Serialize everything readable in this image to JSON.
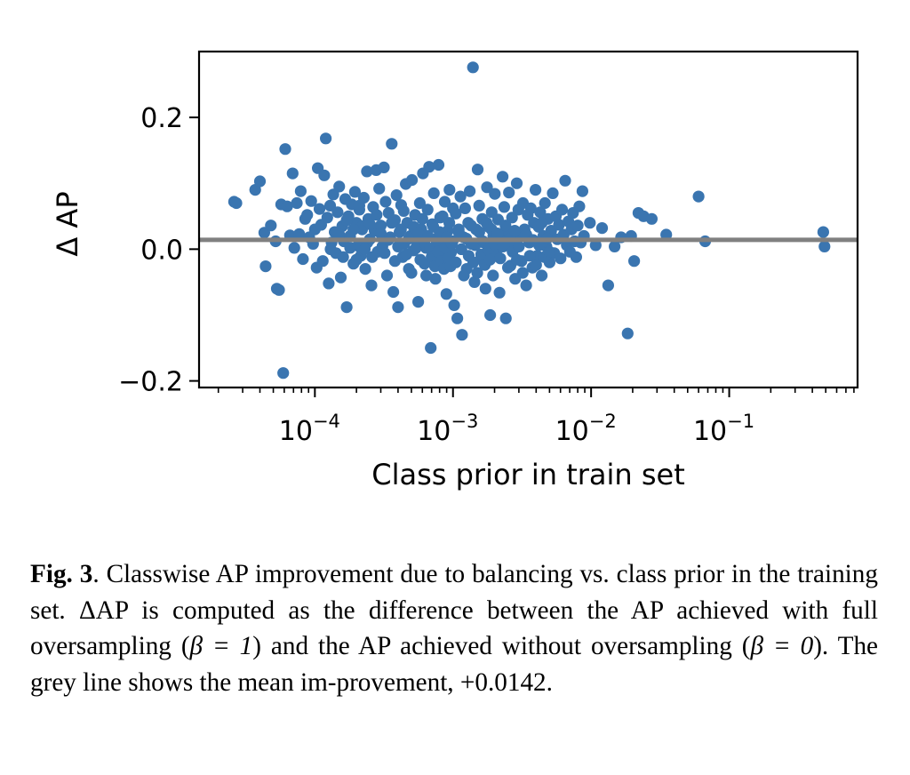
{
  "chart_data": {
    "type": "scatter",
    "title": "",
    "xlabel": "Class prior in train set",
    "ylabel": "Δ AP",
    "xscale": "log",
    "xlim": [
      1.45e-05,
      0.85
    ],
    "ylim": [
      -0.21,
      0.3
    ],
    "xticks": [
      {
        "value": 0.0001,
        "base": "10",
        "exp": "−4"
      },
      {
        "value": 0.001,
        "base": "10",
        "exp": "−3"
      },
      {
        "value": 0.01,
        "base": "10",
        "exp": "−2"
      },
      {
        "value": 0.1,
        "base": "10",
        "exp": "−1"
      }
    ],
    "yticks": [
      {
        "value": -0.2,
        "label": "−0.2"
      },
      {
        "value": 0.0,
        "label": "0.0"
      },
      {
        "value": 0.2,
        "label": "0.2"
      }
    ],
    "point_color": "#3a75b0",
    "mean_line": {
      "value": 0.0142,
      "color": "#808080"
    },
    "points": [
      [
        2.6e-05,
        0.072
      ],
      [
        2.7e-05,
        0.07
      ],
      [
        3.7e-05,
        0.09
      ],
      [
        4e-05,
        0.103
      ],
      [
        4.3e-05,
        0.025
      ],
      [
        4.4e-05,
        -0.026
      ],
      [
        4.8e-05,
        0.036
      ],
      [
        5.2e-05,
        0.012
      ],
      [
        5.3e-05,
        -0.06
      ],
      [
        5.5e-05,
        -0.062
      ],
      [
        5.7e-05,
        0.068
      ],
      [
        5.9e-05,
        -0.188
      ],
      [
        6.1e-05,
        0.152
      ],
      [
        6.3e-05,
        0.065
      ],
      [
        6.6e-05,
        0.021
      ],
      [
        6.9e-05,
        0.115
      ],
      [
        7.1e-05,
        0.002
      ],
      [
        7.4e-05,
        0.07
      ],
      [
        7.7e-05,
        0.023
      ],
      [
        7.9e-05,
        0.088
      ],
      [
        8.2e-05,
        -0.015
      ],
      [
        8.5e-05,
        0.046
      ],
      [
        8.8e-05,
        0.052
      ],
      [
        9.1e-05,
        0.018
      ],
      [
        9.4e-05,
        0.073
      ],
      [
        9.7e-05,
        0.008
      ],
      [
        0.0001,
        0.03
      ],
      [
        0.000103,
        -0.028
      ],
      [
        0.000105,
        0.123
      ],
      [
        0.000108,
        0.061
      ],
      [
        0.000111,
        0.037
      ],
      [
        0.000114,
        -0.018
      ],
      [
        0.000117,
        0.112
      ],
      [
        0.00012,
        0.168
      ],
      [
        0.000123,
        0.048
      ],
      [
        0.000126,
        -0.052
      ],
      [
        0.000129,
        0.066
      ],
      [
        0.000132,
        0.01
      ],
      [
        0.000136,
        0.083
      ],
      [
        0.000139,
        0.026
      ],
      [
        0.000142,
        -0.006
      ],
      [
        0.000146,
        0.056
      ],
      [
        0.00015,
        0.095
      ],
      [
        0.000154,
        -0.043
      ],
      [
        0.000158,
        0.035
      ],
      [
        0.000162,
        0.012
      ],
      [
        0.000166,
        0.076
      ],
      [
        0.00017,
        -0.088
      ],
      [
        0.000175,
        0.05
      ],
      [
        0.00018,
        0.02
      ],
      [
        0.000185,
        0.068
      ],
      [
        0.00019,
        -0.022
      ],
      [
        0.000195,
        0.087
      ],
      [
        0.0002,
        0.04
      ],
      [
        0.000205,
        0.005
      ],
      [
        0.00021,
        0.06
      ],
      [
        0.000215,
        -0.01
      ],
      [
        0.00022,
        0.03
      ],
      [
        0.000226,
        0.078
      ],
      [
        0.000232,
        -0.03
      ],
      [
        0.000238,
        0.118
      ],
      [
        0.000244,
        0.046
      ],
      [
        0.00025,
        0.015
      ],
      [
        0.000257,
        -0.055
      ],
      [
        0.000264,
        0.064
      ],
      [
        0.000271,
        0.028
      ],
      [
        0.000278,
        0.12
      ],
      [
        0.000285,
        -0.004
      ],
      [
        0.000292,
        0.092
      ],
      [
        0.0003,
        0.036
      ],
      [
        0.000308,
        0.004
      ],
      [
        0.000316,
        0.124
      ],
      [
        0.000325,
        0.072
      ],
      [
        0.000333,
        -0.04
      ],
      [
        0.000342,
        0.055
      ],
      [
        0.000351,
        0.018
      ],
      [
        0.00036,
        0.16
      ],
      [
        0.00037,
        -0.065
      ],
      [
        0.00038,
        0.044
      ],
      [
        0.00039,
        0.082
      ],
      [
        0.0004,
        -0.088
      ],
      [
        0.00041,
        0.026
      ],
      [
        0.000421,
        0.067
      ],
      [
        0.000432,
        -0.012
      ],
      [
        0.000443,
        0.008
      ],
      [
        0.000455,
        0.099
      ],
      [
        0.000467,
        0.04
      ],
      [
        0.000479,
        -0.03
      ],
      [
        0.000492,
        0.02
      ],
      [
        0.000505,
        0.105
      ],
      [
        0.000518,
        -0.002
      ],
      [
        0.000532,
        0.052
      ],
      [
        0.000546,
        0.012
      ],
      [
        0.00056,
        -0.08
      ],
      [
        0.000575,
        0.07
      ],
      [
        0.00059,
        0.03
      ],
      [
        0.000606,
        0.115
      ],
      [
        0.000622,
        -0.022
      ],
      [
        0.000638,
        0.002
      ],
      [
        0.000655,
        0.06
      ],
      [
        0.000672,
        0.125
      ],
      [
        0.00069,
        -0.15
      ],
      [
        0.000708,
        0.038
      ],
      [
        0.000727,
        0.085
      ],
      [
        0.000746,
        -0.045
      ],
      [
        0.000766,
        0.016
      ],
      [
        0.000786,
        0.128
      ],
      [
        0.000807,
        0.048
      ],
      [
        0.000828,
        -0.01
      ],
      [
        0.00085,
        0.006
      ],
      [
        0.000872,
        0.072
      ],
      [
        0.000895,
        -0.068
      ],
      [
        0.000919,
        0.028
      ],
      [
        0.000943,
        0.09
      ],
      [
        0.000968,
        -0.005
      ],
      [
        0.000994,
        0.012
      ],
      [
        0.00102,
        -0.085
      ],
      [
        0.001047,
        0.054
      ],
      [
        0.001075,
        -0.105
      ],
      [
        0.001103,
        0.025
      ],
      [
        0.001132,
        0.08
      ],
      [
        0.001162,
        -0.13
      ],
      [
        0.001193,
        0.018
      ],
      [
        0.001224,
        0.062
      ],
      [
        0.001256,
        -0.03
      ],
      [
        0.001289,
        0.04
      ],
      [
        0.001323,
        0.088
      ],
      [
        0.001358,
        0.008
      ],
      [
        0.001394,
        0.276
      ],
      [
        0.001431,
        -0.05
      ],
      [
        0.001469,
        0.03
      ],
      [
        0.001508,
        0.121
      ],
      [
        0.001548,
        0.066
      ],
      [
        0.001589,
        -0.015
      ],
      [
        0.001631,
        0.046
      ],
      [
        0.001674,
        0.01
      ],
      [
        0.001718,
        -0.06
      ],
      [
        0.001763,
        0.094
      ],
      [
        0.00181,
        0.034
      ],
      [
        0.001858,
        -0.1
      ],
      [
        0.001907,
        0.056
      ],
      [
        0.001957,
        0.02
      ],
      [
        0.002009,
        0.084
      ],
      [
        0.002062,
        -0.008
      ],
      [
        0.002117,
        0.045
      ],
      [
        0.002173,
        -0.066
      ],
      [
        0.00223,
        0.015
      ],
      [
        0.002289,
        0.11
      ],
      [
        0.00235,
        0.064
      ],
      [
        0.002412,
        -0.105
      ],
      [
        0.002476,
        0.028
      ],
      [
        0.002541,
        0.086
      ],
      [
        0.002608,
        -0.025
      ],
      [
        0.002677,
        0.048
      ],
      [
        0.002748,
        0.004
      ],
      [
        0.002821,
        -0.045
      ],
      [
        0.002895,
        0.1
      ],
      [
        0.002972,
        0.06
      ],
      [
        0.00305,
        0.022
      ],
      [
        0.003131,
        -0.018
      ],
      [
        0.003214,
        0.07
      ],
      [
        0.003299,
        0.03
      ],
      [
        0.003386,
        -0.055
      ],
      [
        0.003475,
        0.052
      ],
      [
        0.003567,
        0.01
      ],
      [
        0.003661,
        0.062
      ],
      [
        0.003758,
        -0.028
      ],
      [
        0.003857,
        0.04
      ],
      [
        0.003959,
        0.09
      ],
      [
        0.004064,
        -0.01
      ],
      [
        0.004171,
        0.034
      ],
      [
        0.004281,
        0.056
      ],
      [
        0.004394,
        -0.04
      ],
      [
        0.00451,
        0.02
      ],
      [
        0.00463,
        0.07
      ],
      [
        0.004752,
        0.004
      ],
      [
        0.004877,
        0.046
      ],
      [
        0.005006,
        -0.02
      ],
      [
        0.005138,
        0.028
      ],
      [
        0.005274,
        0.085
      ],
      [
        0.005413,
        -0.006
      ],
      [
        0.005556,
        0.05
      ],
      [
        0.005703,
        0.015
      ],
      [
        0.005853,
        0.037
      ],
      [
        0.006008,
        -0.014
      ],
      [
        0.006166,
        0.06
      ],
      [
        0.006329,
        0.022
      ],
      [
        0.006496,
        0.104
      ],
      [
        0.006668,
        0.006
      ],
      [
        0.006844,
        0.042
      ],
      [
        0.007025,
        -0.004
      ],
      [
        0.00721,
        0.03
      ],
      [
        0.007401,
        0.055
      ],
      [
        0.007596,
        0.012
      ],
      [
        0.007797,
        -0.012
      ],
      [
        0.008003,
        0.036
      ],
      [
        0.008214,
        0.065
      ],
      [
        0.008431,
        0.01
      ],
      [
        0.008653,
        0.088
      ],
      [
        0.008882,
        0.02
      ],
      [
        0.0098,
        0.04
      ],
      [
        0.0108,
        0.006
      ],
      [
        0.012,
        0.032
      ],
      [
        0.0133,
        -0.055
      ],
      [
        0.0148,
        0.004
      ],
      [
        0.0165,
        0.018
      ],
      [
        0.0184,
        -0.128
      ],
      [
        0.0195,
        0.02
      ],
      [
        0.0205,
        -0.018
      ],
      [
        0.022,
        0.055
      ],
      [
        0.024,
        0.05
      ],
      [
        0.0275,
        0.046
      ],
      [
        0.035,
        0.022
      ],
      [
        0.06,
        0.08
      ],
      [
        0.067,
        0.012
      ],
      [
        0.48,
        0.026
      ],
      [
        0.49,
        0.004
      ],
      [
        0.00022,
        0.035
      ],
      [
        0.00024,
        0.01
      ],
      [
        0.00026,
        -0.012
      ],
      [
        0.00028,
        0.052
      ],
      [
        0.0003,
        0.024
      ],
      [
        0.00032,
        -0.006
      ],
      [
        0.00034,
        0.014
      ],
      [
        0.00036,
        0.04
      ],
      [
        0.00038,
        -0.018
      ],
      [
        0.0004,
        0.004
      ],
      [
        0.00042,
        0.03
      ],
      [
        0.00044,
        0.058
      ],
      [
        0.00046,
        -0.008
      ],
      [
        0.00048,
        0.016
      ],
      [
        0.0005,
        -0.036
      ],
      [
        0.00052,
        0.034
      ],
      [
        0.00054,
        0.002
      ],
      [
        0.00056,
        0.024
      ],
      [
        0.00058,
        -0.016
      ],
      [
        0.0006,
        0.046
      ],
      [
        0.00062,
        0.01
      ],
      [
        0.00064,
        -0.04
      ],
      [
        0.00066,
        0.02
      ],
      [
        0.00068,
        0.001
      ],
      [
        0.0007,
        -0.012
      ],
      [
        0.00072,
        0.034
      ],
      [
        0.00074,
        -0.026
      ],
      [
        0.00076,
        0.012
      ],
      [
        0.00078,
        -0.004
      ],
      [
        0.0008,
        0.026
      ],
      [
        0.00082,
        -0.018
      ],
      [
        0.00084,
        0.05
      ],
      [
        0.00086,
        -0.03
      ],
      [
        0.00088,
        0.002
      ],
      [
        0.0009,
        0.018
      ],
      [
        0.00092,
        -0.014
      ],
      [
        0.00094,
        0.04
      ],
      [
        0.00096,
        -0.026
      ],
      [
        0.00098,
        0.008
      ],
      [
        0.001,
        0.062
      ],
      [
        0.00105,
        -0.02
      ],
      [
        0.0011,
        0.03
      ],
      [
        0.00115,
        0.0
      ],
      [
        0.0012,
        -0.04
      ],
      [
        0.00125,
        0.016
      ],
      [
        0.0013,
        -0.01
      ],
      [
        0.00135,
        0.036
      ],
      [
        0.0014,
        -0.02
      ],
      [
        0.00145,
        0.006
      ],
      [
        0.0015,
        -0.036
      ],
      [
        0.00155,
        0.026
      ],
      [
        0.0016,
        -0.008
      ],
      [
        0.00165,
        0.012
      ],
      [
        0.0017,
        -0.024
      ],
      [
        0.00175,
        0.04
      ],
      [
        0.0018,
        0.0
      ],
      [
        0.00185,
        -0.016
      ],
      [
        0.0019,
        0.03
      ],
      [
        0.00195,
        -0.04
      ],
      [
        0.002,
        0.008
      ],
      [
        0.0021,
        0.024
      ],
      [
        0.0022,
        -0.014
      ],
      [
        0.0023,
        0.004
      ],
      [
        0.0024,
        0.036
      ],
      [
        0.0025,
        -0.028
      ],
      [
        0.0026,
        0.016
      ],
      [
        0.0027,
        -0.004
      ],
      [
        0.0028,
        0.028
      ],
      [
        0.0029,
        -0.016
      ],
      [
        0.003,
        0.004
      ],
      [
        0.0032,
        -0.036
      ],
      [
        0.0034,
        0.022
      ],
      [
        0.0036,
        -0.01
      ],
      [
        0.0038,
        0.014
      ],
      [
        0.004,
        -0.024
      ],
      [
        0.0042,
        0.006
      ],
      [
        0.0044,
        0.04
      ],
      [
        0.0046,
        -0.012
      ],
      [
        0.0048,
        0.016
      ],
      [
        0.005,
        -0.004
      ],
      [
        0.00013,
        0.0
      ],
      [
        0.00015,
        0.022
      ],
      [
        0.00016,
        -0.012
      ],
      [
        0.00017,
        0.044
      ],
      [
        0.00018,
        0.002
      ],
      [
        0.00019,
        0.03
      ],
      [
        0.0002,
        -0.016
      ],
      [
        0.00021,
        0.066
      ],
      [
        0.00023,
        0.0
      ],
      [
        0.00025,
        0.038
      ]
    ]
  },
  "caption": {
    "label": "Fig. 3",
    "p1": ". Classwise AP improvement due to balancing vs. class prior in the training set. ",
    "p2": "ΔAP is computed as the difference between the AP achieved with full oversampling (",
    "beta1": "β = 1",
    "p3": ") and the AP achieved without oversampling (",
    "beta2": "β = 0",
    "p4": "). The grey line shows the mean im-provement, +0.0142."
  }
}
